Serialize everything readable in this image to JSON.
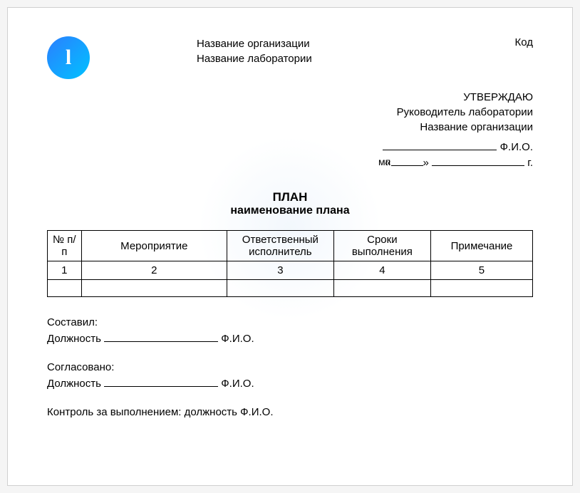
{
  "header": {
    "org_name": "Название организации",
    "lab_name": "Название лаборатории",
    "code_label": "Код"
  },
  "approve": {
    "title": "УТВЕРЖДАЮ",
    "position": "Руководитель лаборатории",
    "org": "Название организации",
    "fio": "Ф.И.О.",
    "quote_open": "«",
    "quote_close": "»",
    "year_suffix": "г.",
    "mp": "мп"
  },
  "title": {
    "main": "ПЛАН",
    "sub": "наименование плана"
  },
  "table": {
    "headers": {
      "c1": "№ п/п",
      "c2": "Мероприятие",
      "c3": "Ответственный исполнитель",
      "c4": "Сроки выполнения",
      "c5": "Примечание"
    },
    "numbers": {
      "c1": "1",
      "c2": "2",
      "c3": "3",
      "c4": "4",
      "c5": "5"
    }
  },
  "footer": {
    "compiled": "Составил:",
    "position_label": "Должность",
    "fio": "Ф.И.О.",
    "agreed": "Согласовано:",
    "control": "Контроль за выполнением: должность Ф.И.О."
  }
}
